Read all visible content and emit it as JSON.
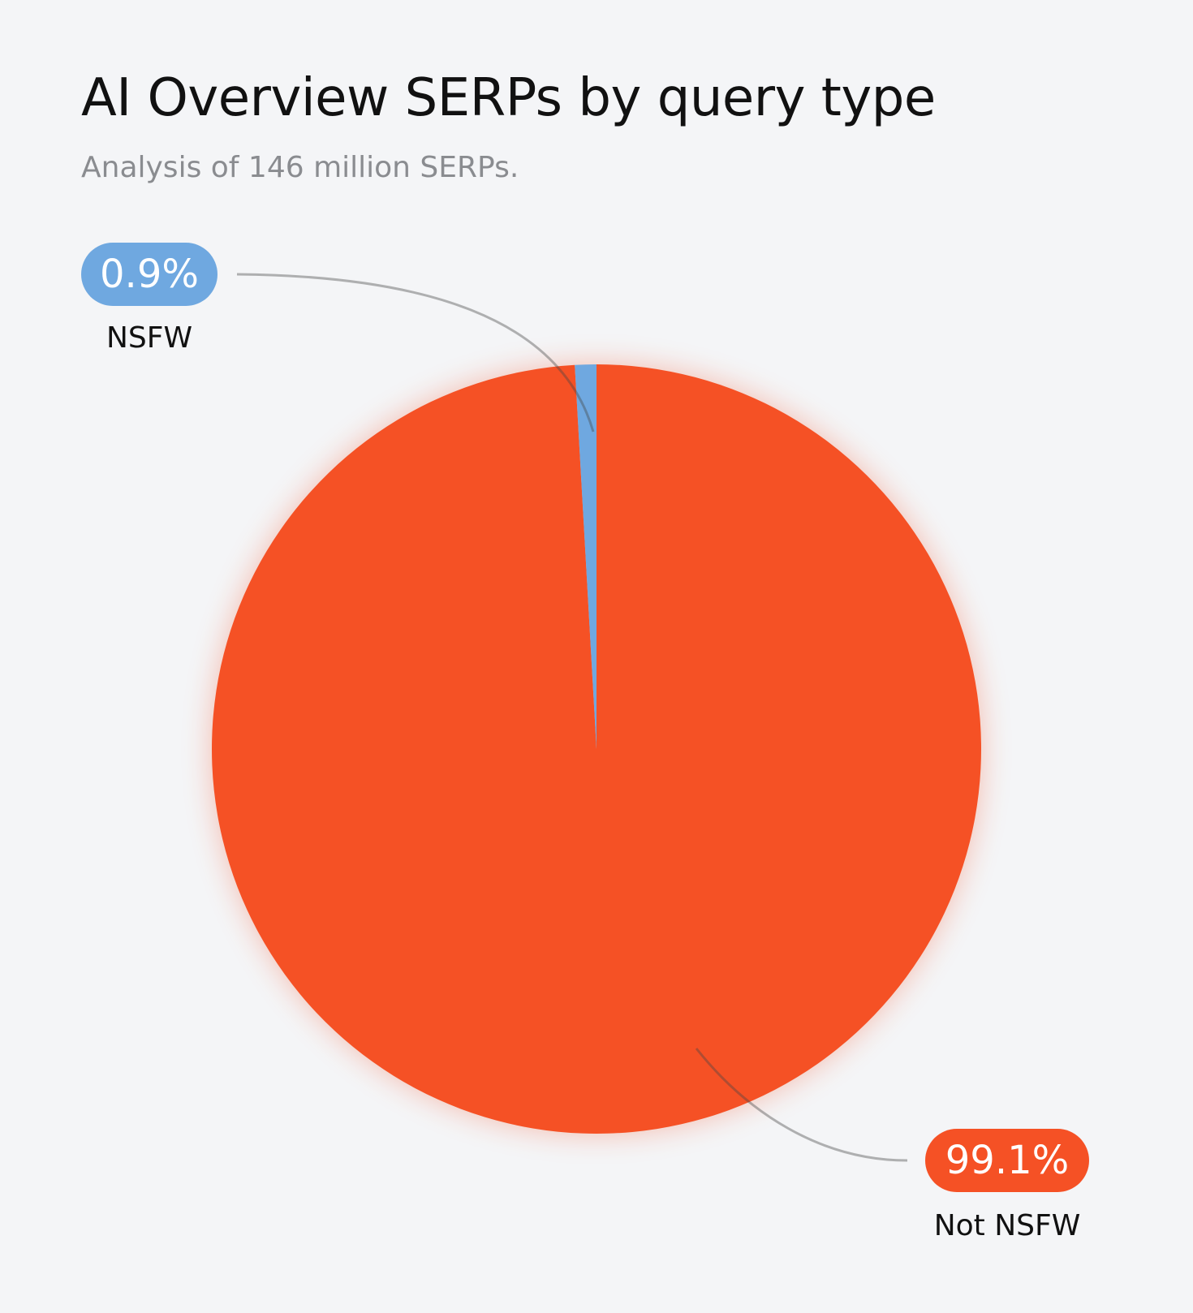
{
  "title": "AI Overview SERPs by query type",
  "subtitle": "Analysis of 146 million SERPs.",
  "chart_data": {
    "type": "pie",
    "title": "AI Overview SERPs by query type",
    "subtitle": "Analysis of 146 million SERPs.",
    "slices": [
      {
        "label": "NSFW",
        "value": 0.9,
        "display": "0.9%",
        "color": "#6fa8e0"
      },
      {
        "label": "Not NSFW",
        "value": 99.1,
        "display": "99.1%",
        "color": "#f55125"
      }
    ],
    "start_angle": "12 o'clock",
    "direction": "counterclockwise for NSFW slice"
  }
}
